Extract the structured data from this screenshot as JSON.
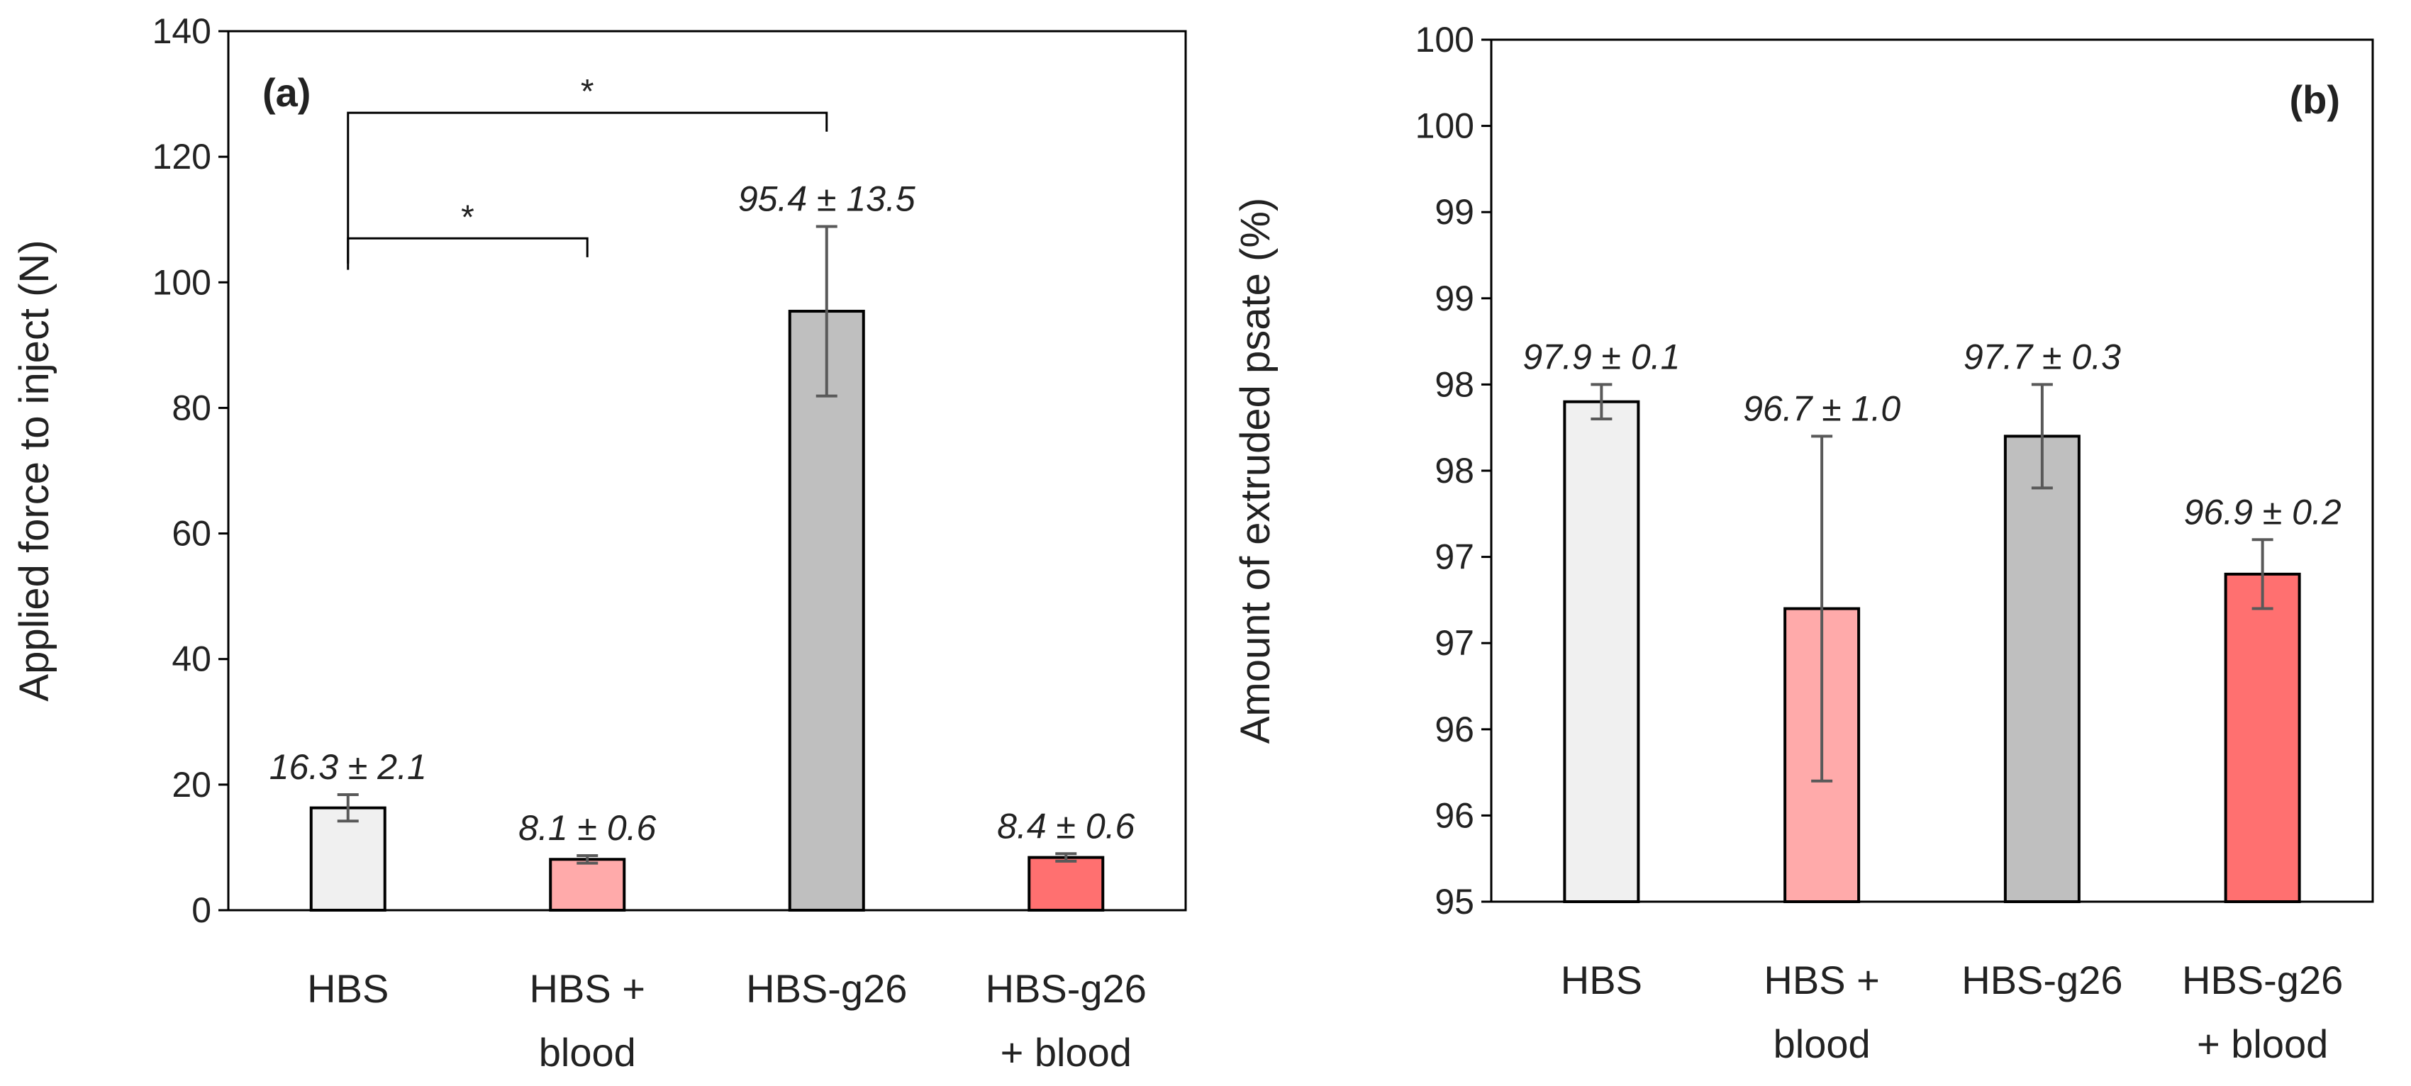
{
  "chart_data": [
    {
      "type": "bar",
      "panel_label": "(a)",
      "title": "",
      "xlabel": "",
      "ylabel": "Applied force to inject (N)",
      "ylim": [
        0,
        140
      ],
      "yticks": [
        0,
        20,
        40,
        60,
        80,
        100,
        120,
        140
      ],
      "yticklabels": [
        "0",
        "20",
        "40",
        "60",
        "80",
        "100",
        "120",
        "140"
      ],
      "grid": false,
      "categories": [
        [
          "HBS"
        ],
        [
          "HBS +",
          "blood"
        ],
        [
          "HBS-g26"
        ],
        [
          "HBS-g26",
          "+ blood"
        ]
      ],
      "values": [
        16.3,
        8.1,
        95.4,
        8.4
      ],
      "errors": [
        2.1,
        0.6,
        13.5,
        0.6
      ],
      "data_labels": [
        "16.3 ± 2.1",
        "8.1 ± 0.6",
        "95.4 ± 13.5",
        "8.4 ± 0.6"
      ],
      "colors": [
        "#f0f0f0",
        "#ffaaaa",
        "#bfbfbf",
        "#ff7070"
      ],
      "significance": [
        {
          "from": 0,
          "to": 2,
          "y_left": 102,
          "y_right": 124,
          "y_top": 127,
          "label": "*"
        },
        {
          "from": 0,
          "to": 1,
          "y_left": 103,
          "y_right": 104,
          "y_top": 107,
          "label": "*"
        }
      ]
    },
    {
      "type": "bar",
      "panel_label": "(b)",
      "title": "",
      "xlabel": "",
      "ylabel": "Amount of extruded psate (%)",
      "ylim": [
        95,
        100
      ],
      "yticks": [
        95,
        95.5,
        96,
        96.5,
        97,
        97.5,
        98,
        98.5,
        99,
        99.5,
        100
      ],
      "yticklabels": [
        "95",
        "96",
        "96",
        "97",
        "97",
        "98",
        "98",
        "99",
        "99",
        "100",
        "100"
      ],
      "grid": false,
      "categories": [
        [
          "HBS"
        ],
        [
          "HBS +",
          "blood"
        ],
        [
          "HBS-g26"
        ],
        [
          "HBS-g26",
          "+ blood"
        ]
      ],
      "values": [
        97.9,
        96.7,
        97.7,
        96.9
      ],
      "errors": [
        0.1,
        1.0,
        0.3,
        0.2
      ],
      "data_labels": [
        "97.9 ± 0.1",
        "96.7 ± 1.0",
        "97.7 ± 0.3",
        "96.9 ± 0.2"
      ],
      "colors": [
        "#f0f0f0",
        "#ffaaaa",
        "#bfbfbf",
        "#ff7070"
      ]
    }
  ]
}
